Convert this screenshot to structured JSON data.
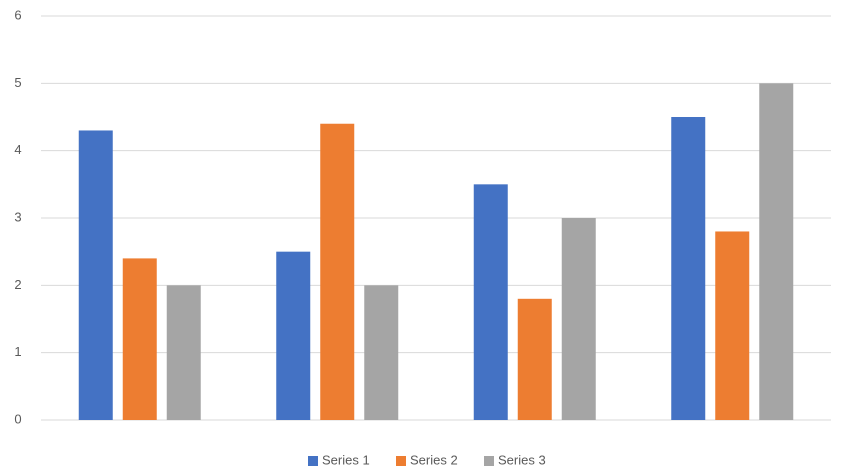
{
  "chart_data": {
    "type": "bar",
    "categories": [
      null,
      null,
      null,
      null
    ],
    "series": [
      {
        "name": "Series 1",
        "color": "#4472c4",
        "values": [
          4.3,
          2.5,
          3.5,
          4.5
        ]
      },
      {
        "name": "Series 2",
        "color": "#ed7d31",
        "values": [
          2.4,
          4.4,
          1.8,
          2.8
        ]
      },
      {
        "name": "Series 3",
        "color": "#a5a5a5",
        "values": [
          2,
          2,
          3,
          5
        ]
      }
    ],
    "ylim": [
      0,
      6
    ],
    "yticks": [
      0,
      1,
      2,
      3,
      4,
      5,
      6
    ],
    "grid": true,
    "legend": "bottom"
  }
}
